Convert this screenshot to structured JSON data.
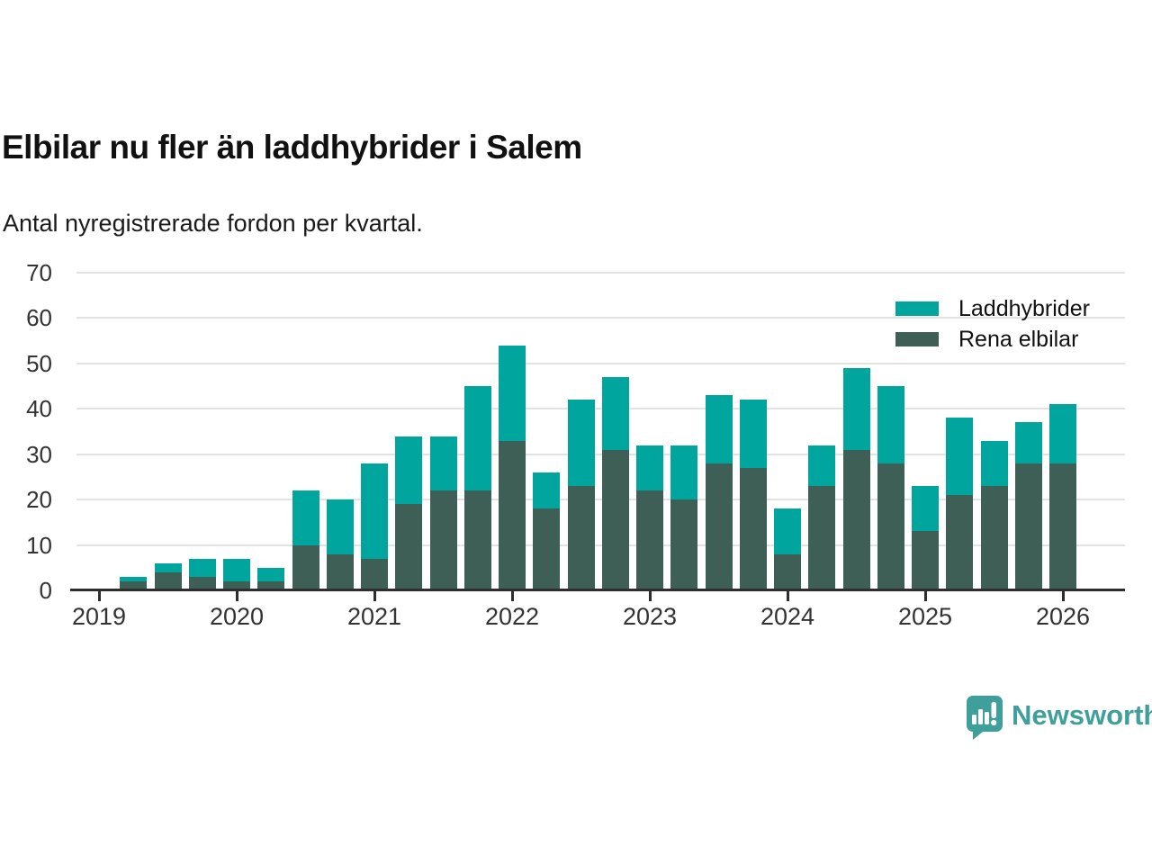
{
  "header": {
    "title": "Elbilar nu fler än laddhybrider i Salem",
    "subtitle": "Antal nyregistrerade fordon per kvartal."
  },
  "chart_data": {
    "type": "bar",
    "stacked": true,
    "title": "Elbilar nu fler än laddhybrider i Salem",
    "subtitle": "Antal nyregistrerade fordon per kvartal.",
    "categories": [
      "2019 Q2",
      "2019 Q3",
      "2019 Q4",
      "2020 Q1",
      "2020 Q2",
      "2020 Q3",
      "2020 Q4",
      "2021 Q1",
      "2021 Q2",
      "2021 Q3",
      "2021 Q4",
      "2022 Q1",
      "2022 Q2",
      "2022 Q3",
      "2022 Q4",
      "2023 Q1",
      "2023 Q2",
      "2023 Q3",
      "2023 Q4",
      "2024 Q1",
      "2024 Q2",
      "2024 Q3",
      "2024 Q4",
      "2025 Q1",
      "2025 Q2",
      "2025 Q3",
      "2025 Q4",
      "2026 Q1"
    ],
    "series": [
      {
        "name": "Laddhybrider",
        "color": "#00a69e",
        "values": [
          1,
          2,
          4,
          5,
          3,
          12,
          12,
          21,
          15,
          12,
          23,
          21,
          8,
          19,
          16,
          10,
          12,
          15,
          15,
          10,
          9,
          18,
          17,
          10,
          17,
          10,
          9,
          13
        ]
      },
      {
        "name": "Rena elbilar",
        "color": "#3e5f56",
        "values": [
          2,
          4,
          3,
          2,
          2,
          10,
          8,
          7,
          19,
          22,
          22,
          33,
          18,
          23,
          31,
          22,
          20,
          28,
          27,
          8,
          23,
          31,
          28,
          13,
          21,
          23,
          28,
          28
        ]
      }
    ],
    "stack_totals": [
      3,
      6,
      7,
      7,
      5,
      22,
      20,
      28,
      34,
      34,
      45,
      54,
      26,
      42,
      47,
      32,
      32,
      43,
      42,
      18,
      32,
      49,
      45,
      23,
      38,
      33,
      37,
      41
    ],
    "stack_order_bottom_to_top": [
      "Rena elbilar",
      "Laddhybrider"
    ],
    "ylim": [
      0,
      70
    ],
    "yticks": [
      0,
      10,
      20,
      30,
      40,
      50,
      60,
      70
    ],
    "x_year_labels": [
      "2019",
      "2020",
      "2021",
      "2022",
      "2023",
      "2024",
      "2025",
      "2026"
    ],
    "grid": "horizontal",
    "legend_position": "top-right"
  },
  "footer": {
    "brand": "Newsworthy",
    "logo_icon": "newsworthy-speech-bubble-chart-icon",
    "brand_color": "#3fa09b"
  }
}
